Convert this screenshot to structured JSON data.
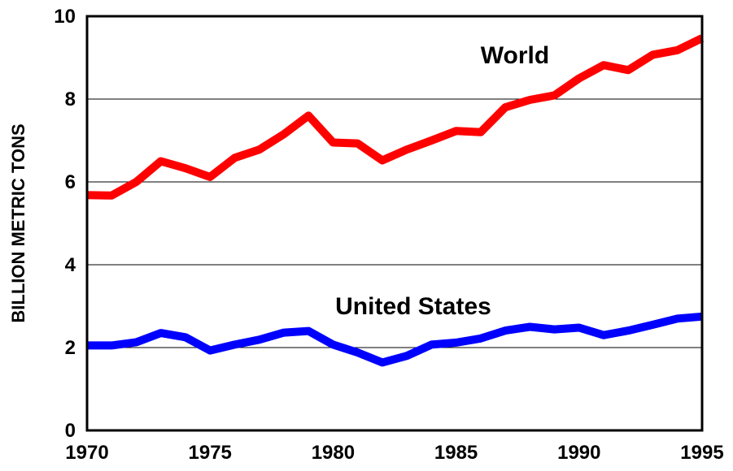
{
  "chart_data": {
    "type": "line",
    "title": "",
    "xlabel": "",
    "ylabel": "BILLION METRIC TONS",
    "xlim": [
      1970,
      1995
    ],
    "ylim": [
      0,
      10
    ],
    "x_ticks": [
      "1970",
      "1975",
      "1980",
      "1985",
      "1990",
      "1995"
    ],
    "y_ticks": [
      "0",
      "2",
      "4",
      "6",
      "8",
      "10"
    ],
    "grid": "horizontal",
    "series": [
      {
        "name": "World",
        "color": "#ff0000",
        "x": [
          1970,
          1971,
          1972,
          1973,
          1974,
          1975,
          1976,
          1977,
          1978,
          1979,
          1980,
          1981,
          1982,
          1983,
          1984,
          1985,
          1986,
          1987,
          1988,
          1989,
          1990,
          1991,
          1992,
          1993,
          1994,
          1995
        ],
        "values": [
          5.68,
          5.67,
          6.0,
          6.5,
          6.33,
          6.12,
          6.58,
          6.78,
          7.15,
          7.6,
          6.95,
          6.93,
          6.52,
          6.78,
          7.0,
          7.23,
          7.2,
          7.8,
          7.98,
          8.09,
          8.5,
          8.82,
          8.7,
          9.07,
          9.18,
          9.47
        ]
      },
      {
        "name": "United States",
        "color": "#0000ff",
        "x": [
          1970,
          1971,
          1972,
          1973,
          1974,
          1975,
          1976,
          1977,
          1978,
          1979,
          1980,
          1981,
          1982,
          1983,
          1984,
          1985,
          1986,
          1987,
          1988,
          1989,
          1990,
          1991,
          1992,
          1993,
          1994,
          1995
        ],
        "values": [
          2.05,
          2.05,
          2.13,
          2.35,
          2.25,
          1.93,
          2.07,
          2.19,
          2.36,
          2.4,
          2.07,
          1.88,
          1.64,
          1.8,
          2.07,
          2.12,
          2.22,
          2.41,
          2.5,
          2.44,
          2.48,
          2.3,
          2.41,
          2.55,
          2.7,
          2.75
        ]
      }
    ]
  }
}
